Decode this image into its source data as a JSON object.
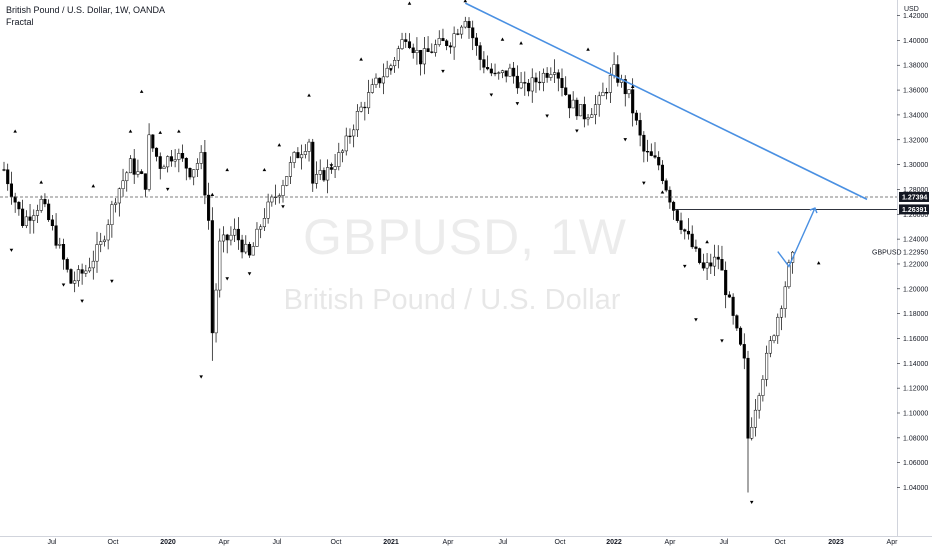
{
  "header": {
    "symbol_line": "British Pound / U.S. Dollar, 1W, OANDA",
    "indicator": "Fractal"
  },
  "watermark": {
    "ticker": "GBPUSD, 1W",
    "name": "British Pound / U.S. Dollar"
  },
  "colors": {
    "trendline": "#4a90e2",
    "up_candle": "#ffffff",
    "down_candle": "#000000",
    "outline": "#000000",
    "tag_bg": "#131722"
  },
  "chart_data": {
    "type": "candlestick",
    "instrument": "GBPUSD",
    "timeframe": "1W",
    "y_axis": {
      "unit": "USD",
      "range": [
        1.03,
        1.435
      ],
      "ticks": [
        "1.04000",
        "1.06000",
        "1.08000",
        "1.10000",
        "1.12000",
        "1.14000",
        "1.16000",
        "1.18000",
        "1.20000",
        "1.22000",
        "1.24000",
        "1.26000",
        "1.28000",
        "1.30000",
        "1.32000",
        "1.34000",
        "1.36000",
        "1.38000",
        "1.40000",
        "1.42000"
      ]
    },
    "x_axis": {
      "ticks": [
        "Jul",
        "Oct",
        "2020",
        "Apr",
        "Jul",
        "Oct",
        "2021",
        "Apr",
        "Jul",
        "Oct",
        "2022",
        "Apr",
        "Jul",
        "Oct",
        "2023",
        "Apr"
      ]
    },
    "price_tags": [
      {
        "label": "1.27394",
        "value": 1.27394
      },
      {
        "label": "1.26391",
        "value": 1.26391
      }
    ],
    "last_price": {
      "label": "GBPUSD",
      "value": "1.22950"
    },
    "trendline": {
      "from": {
        "week": 124,
        "price": 1.43
      },
      "to": {
        "week": 232,
        "price": 1.272
      }
    },
    "dashed_level": 1.27394,
    "resistance_level": {
      "value": 1.26391,
      "from_week": 180,
      "to_week": 232
    },
    "projection": [
      {
        "week": 208,
        "price": 1.23
      },
      {
        "week": 211,
        "price": 1.218
      },
      {
        "week": 218,
        "price": 1.265
      }
    ],
    "anchors": [
      [
        0,
        1.296
      ],
      [
        5,
        1.254
      ],
      [
        10,
        1.27
      ],
      [
        14,
        1.24
      ],
      [
        18,
        1.205
      ],
      [
        22,
        1.215
      ],
      [
        26,
        1.235
      ],
      [
        30,
        1.275
      ],
      [
        34,
        1.3
      ],
      [
        38,
        1.285
      ],
      [
        39,
        1.32
      ],
      [
        42,
        1.3
      ],
      [
        46,
        1.31
      ],
      [
        50,
        1.295
      ],
      [
        53,
        1.305
      ],
      [
        55,
        1.255
      ],
      [
        56,
        1.165
      ],
      [
        58,
        1.235
      ],
      [
        62,
        1.245
      ],
      [
        66,
        1.225
      ],
      [
        70,
        1.26
      ],
      [
        74,
        1.28
      ],
      [
        78,
        1.305
      ],
      [
        82,
        1.32
      ],
      [
        83,
        1.285
      ],
      [
        87,
        1.295
      ],
      [
        91,
        1.31
      ],
      [
        95,
        1.34
      ],
      [
        100,
        1.365
      ],
      [
        104,
        1.38
      ],
      [
        108,
        1.405
      ],
      [
        112,
        1.385
      ],
      [
        116,
        1.395
      ],
      [
        120,
        1.4
      ],
      [
        124,
        1.42
      ],
      [
        128,
        1.385
      ],
      [
        132,
        1.37
      ],
      [
        136,
        1.375
      ],
      [
        140,
        1.36
      ],
      [
        144,
        1.37
      ],
      [
        148,
        1.38
      ],
      [
        152,
        1.35
      ],
      [
        156,
        1.34
      ],
      [
        160,
        1.35
      ],
      [
        164,
        1.375
      ],
      [
        168,
        1.355
      ],
      [
        172,
        1.31
      ],
      [
        176,
        1.3
      ],
      [
        180,
        1.265
      ],
      [
        184,
        1.24
      ],
      [
        188,
        1.215
      ],
      [
        192,
        1.225
      ],
      [
        196,
        1.175
      ],
      [
        199,
        1.14
      ],
      [
        200,
        1.08
      ],
      [
        203,
        1.12
      ],
      [
        206,
        1.155
      ],
      [
        209,
        1.19
      ],
      [
        212,
        1.23
      ]
    ],
    "fractals": {
      "up": [
        [
          3,
          1.327
        ],
        [
          10,
          1.286
        ],
        [
          24,
          1.283
        ],
        [
          34,
          1.327
        ],
        [
          37,
          1.359
        ],
        [
          42,
          1.326
        ],
        [
          47,
          1.327
        ],
        [
          56,
          1.276
        ],
        [
          60,
          1.296
        ],
        [
          70,
          1.296
        ],
        [
          74,
          1.316
        ],
        [
          82,
          1.356
        ],
        [
          96,
          1.385
        ],
        [
          109,
          1.43
        ],
        [
          124,
          1.432
        ],
        [
          134,
          1.401
        ],
        [
          139,
          1.398
        ],
        [
          157,
          1.393
        ],
        [
          169,
          1.363
        ],
        [
          177,
          1.278
        ],
        [
          189,
          1.238
        ],
        [
          219,
          1.221
        ]
      ],
      "down": [
        [
          2,
          1.231
        ],
        [
          16,
          1.203
        ],
        [
          21,
          1.19
        ],
        [
          29,
          1.206
        ],
        [
          44,
          1.28
        ],
        [
          53,
          1.129
        ],
        [
          60,
          1.208
        ],
        [
          66,
          1.212
        ],
        [
          75,
          1.266
        ],
        [
          88,
          1.299
        ],
        [
          104,
          1.376
        ],
        [
          112,
          1.382
        ],
        [
          118,
          1.375
        ],
        [
          131,
          1.356
        ],
        [
          138,
          1.349
        ],
        [
          146,
          1.339
        ],
        [
          154,
          1.327
        ],
        [
          167,
          1.32
        ],
        [
          172,
          1.285
        ],
        [
          183,
          1.218
        ],
        [
          186,
          1.175
        ],
        [
          193,
          1.158
        ],
        [
          201,
          1.028
        ]
      ]
    }
  }
}
